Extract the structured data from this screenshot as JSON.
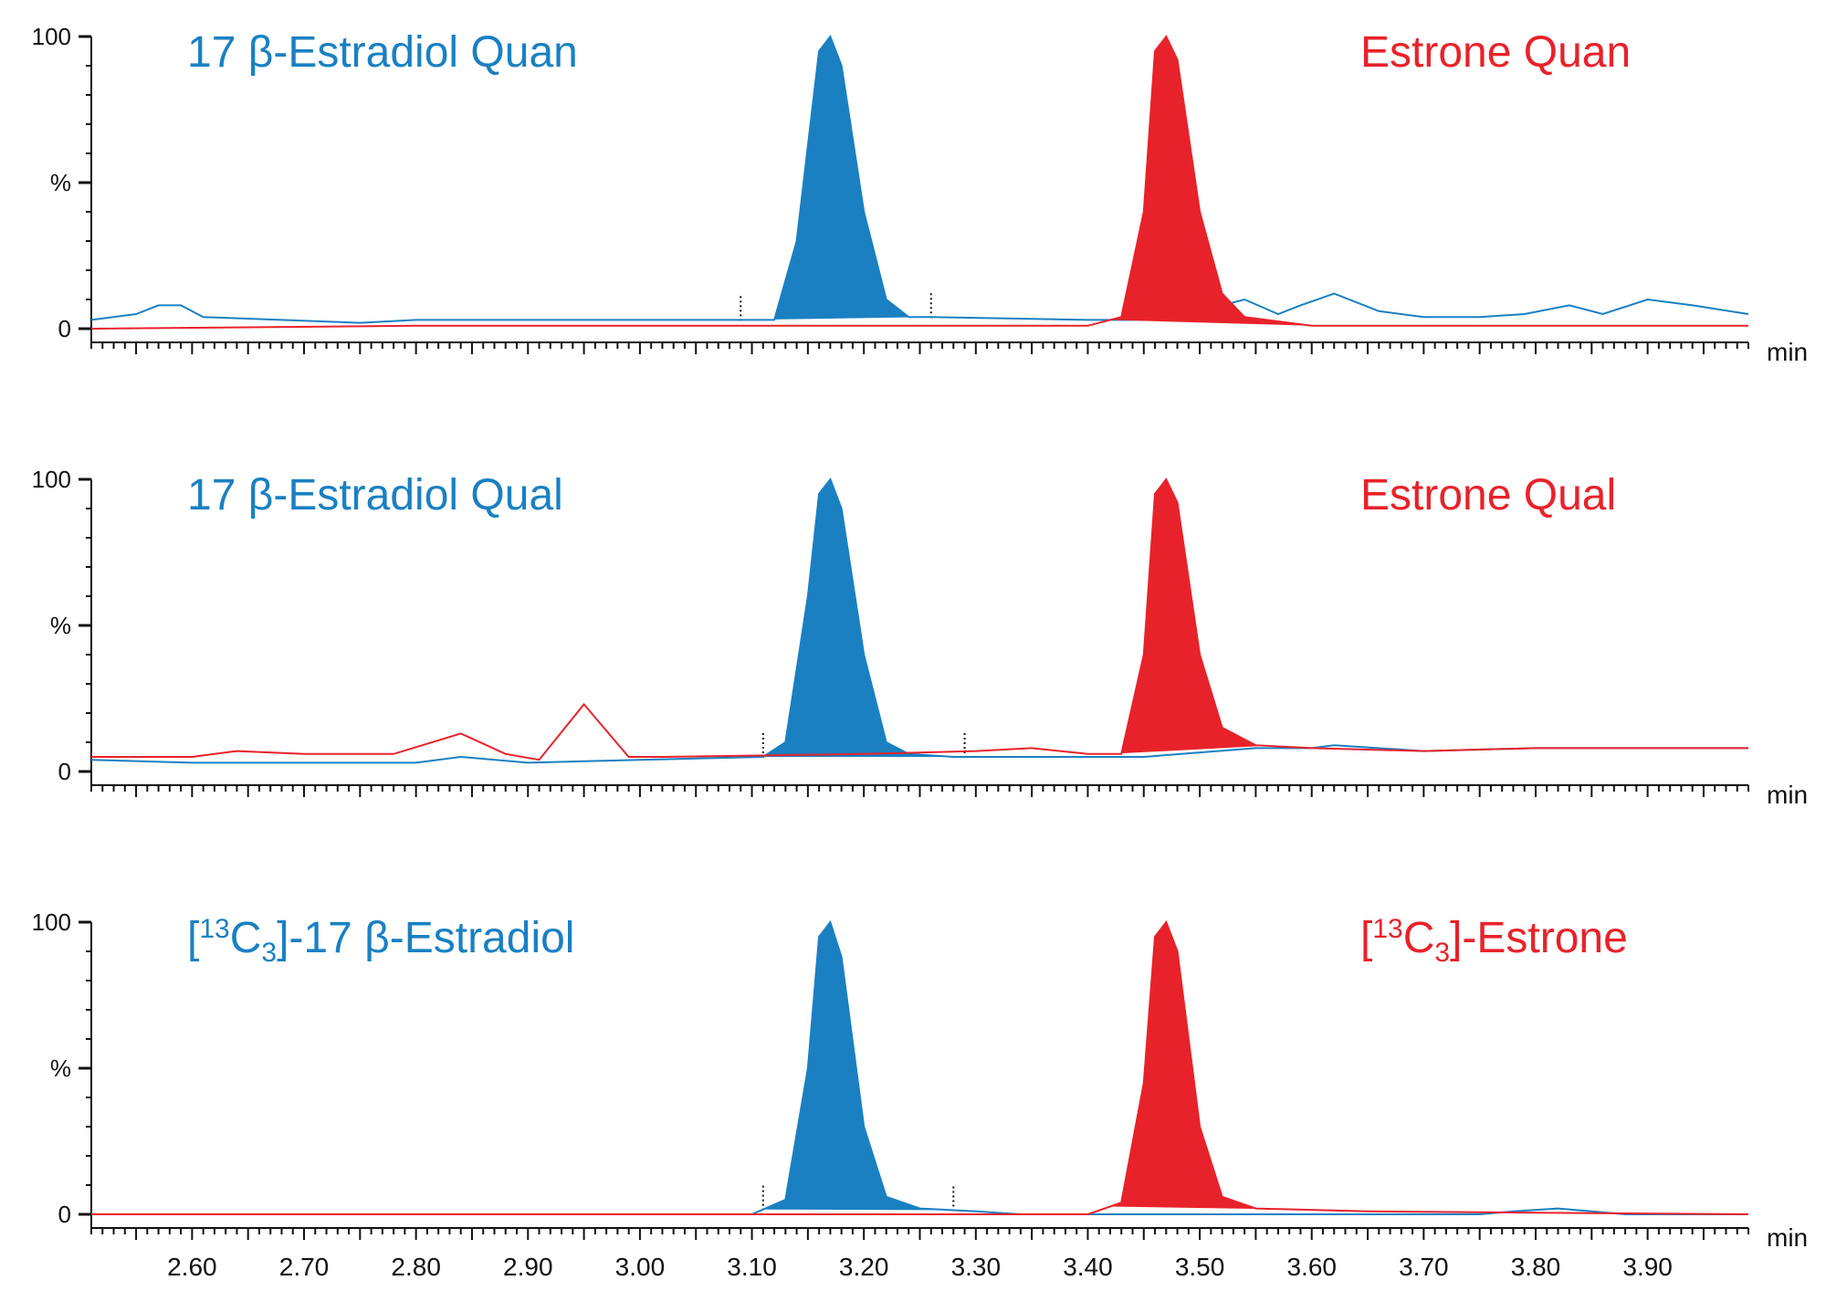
{
  "colors": {
    "estradiol": "#1a80c2",
    "estrone": "#e8222a",
    "axis": "#111111"
  },
  "y_axis": {
    "ticks": [
      "100",
      "%",
      "0"
    ],
    "ylim": [
      0,
      100
    ]
  },
  "x_axis": {
    "unit": "min",
    "xlim": [
      2.51,
      3.99
    ],
    "tick_values": [
      2.6,
      2.7,
      2.8,
      2.9,
      3.0,
      3.1,
      3.2,
      3.3,
      3.4,
      3.5,
      3.6,
      3.7,
      3.8,
      3.9
    ],
    "tick_labels": [
      "2.60",
      "2.70",
      "2.80",
      "2.90",
      "3.00",
      "3.10",
      "3.20",
      "3.30",
      "3.40",
      "3.50",
      "3.60",
      "3.70",
      "3.80",
      "3.90"
    ]
  },
  "chart_data": [
    {
      "type": "line",
      "xlabel": "min",
      "ylabel": "%",
      "ylim": [
        0,
        100
      ],
      "labels": {
        "left": "17 β-Estradiol Quan",
        "right": "Estrone Quan"
      },
      "series": [
        {
          "name": "17 β-Estradiol Quan",
          "color": "#1a80c2",
          "x": [
            2.51,
            2.55,
            2.57,
            2.59,
            2.61,
            2.75,
            2.8,
            3.0,
            3.08,
            3.12,
            3.14,
            3.16,
            3.17,
            3.18,
            3.2,
            3.22,
            3.24,
            3.26,
            3.4,
            3.44,
            3.46,
            3.48,
            3.5,
            3.54,
            3.57,
            3.59,
            3.62,
            3.66,
            3.7,
            3.75,
            3.79,
            3.83,
            3.86,
            3.9,
            3.94,
            3.99
          ],
          "y": [
            3,
            5,
            8,
            8,
            4,
            2,
            3,
            3,
            3,
            3,
            30,
            95,
            100,
            90,
            40,
            10,
            4,
            4,
            3,
            3,
            3,
            4,
            6,
            10,
            5,
            8,
            12,
            6,
            4,
            4,
            5,
            8,
            5,
            10,
            8,
            5
          ],
          "peak": {
            "start": 3.09,
            "end": 3.26
          }
        },
        {
          "name": "Estrone Quan",
          "color": "#e8222a",
          "x": [
            2.51,
            2.8,
            3.0,
            3.2,
            3.4,
            3.43,
            3.45,
            3.46,
            3.47,
            3.48,
            3.5,
            3.52,
            3.54,
            3.6,
            3.99
          ],
          "y": [
            0,
            1,
            1,
            1,
            1,
            4,
            40,
            95,
            100,
            92,
            40,
            12,
            4,
            1,
            1
          ],
          "peak": {
            "start": 3.42,
            "end": 3.6
          }
        }
      ]
    },
    {
      "type": "line",
      "xlabel": "min",
      "ylabel": "%",
      "ylim": [
        0,
        100
      ],
      "labels": {
        "left": "17 β-Estradiol Qual",
        "right": "Estrone Qual"
      },
      "series": [
        {
          "name": "17 β-Estradiol Qual",
          "color": "#1a80c2",
          "x": [
            2.51,
            2.6,
            2.8,
            2.84,
            2.9,
            3.0,
            3.11,
            3.13,
            3.15,
            3.16,
            3.17,
            3.18,
            3.2,
            3.22,
            3.24,
            3.28,
            3.35,
            3.45,
            3.55,
            3.6,
            3.62,
            3.7,
            3.8,
            3.9,
            3.99
          ],
          "y": [
            4,
            3,
            3,
            5,
            3,
            4,
            5,
            10,
            60,
            95,
            100,
            90,
            40,
            10,
            6,
            5,
            5,
            5,
            8,
            8,
            9,
            7,
            8,
            8,
            8
          ],
          "peak": {
            "start": 3.11,
            "end": 3.29
          }
        },
        {
          "name": "Estrone Qual",
          "color": "#e8222a",
          "x": [
            2.51,
            2.6,
            2.64,
            2.7,
            2.78,
            2.84,
            2.88,
            2.91,
            2.95,
            2.99,
            3.02,
            3.2,
            3.3,
            3.35,
            3.4,
            3.43,
            3.45,
            3.46,
            3.47,
            3.48,
            3.5,
            3.52,
            3.55,
            3.6,
            3.7,
            3.8,
            3.9,
            3.99
          ],
          "y": [
            5,
            5,
            7,
            6,
            6,
            13,
            6,
            4,
            23,
            5,
            5,
            6,
            7,
            8,
            6,
            6,
            40,
            95,
            100,
            92,
            40,
            15,
            9,
            8,
            7,
            8,
            8,
            8
          ],
          "peak": {
            "start": 3.42,
            "end": 3.56
          }
        }
      ]
    },
    {
      "type": "line",
      "xlabel": "min",
      "ylabel": "%",
      "ylim": [
        0,
        100
      ],
      "labels": {
        "left": {
          "pre": "[",
          "sup": "13",
          "mid": "C",
          "sub": "3",
          "post": "]-17 β-Estradiol"
        },
        "right": {
          "pre": "[",
          "sup": "13",
          "mid": "C",
          "sub": "3",
          "post": "]-Estrone"
        }
      },
      "series": [
        {
          "name": "[13C3]-17 β-Estradiol",
          "color": "#1a80c2",
          "x": [
            2.51,
            3.1,
            3.13,
            3.15,
            3.16,
            3.17,
            3.18,
            3.2,
            3.22,
            3.25,
            3.3,
            3.34,
            3.4,
            3.75,
            3.78,
            3.82,
            3.85,
            3.88,
            3.99
          ],
          "y": [
            0,
            0,
            5,
            50,
            95,
            100,
            88,
            30,
            6,
            2,
            1,
            0,
            0,
            0,
            1,
            2,
            1,
            0,
            0
          ],
          "peak": {
            "start": 3.11,
            "end": 3.28
          }
        },
        {
          "name": "[13C3]-Estrone",
          "color": "#e8222a",
          "x": [
            2.51,
            3.4,
            3.43,
            3.45,
            3.46,
            3.47,
            3.48,
            3.5,
            3.52,
            3.55,
            3.65,
            3.99
          ],
          "y": [
            0,
            0,
            4,
            45,
            95,
            100,
            90,
            30,
            6,
            2,
            1,
            0
          ],
          "peak": {
            "start": 3.42,
            "end": 3.58
          }
        }
      ]
    }
  ]
}
